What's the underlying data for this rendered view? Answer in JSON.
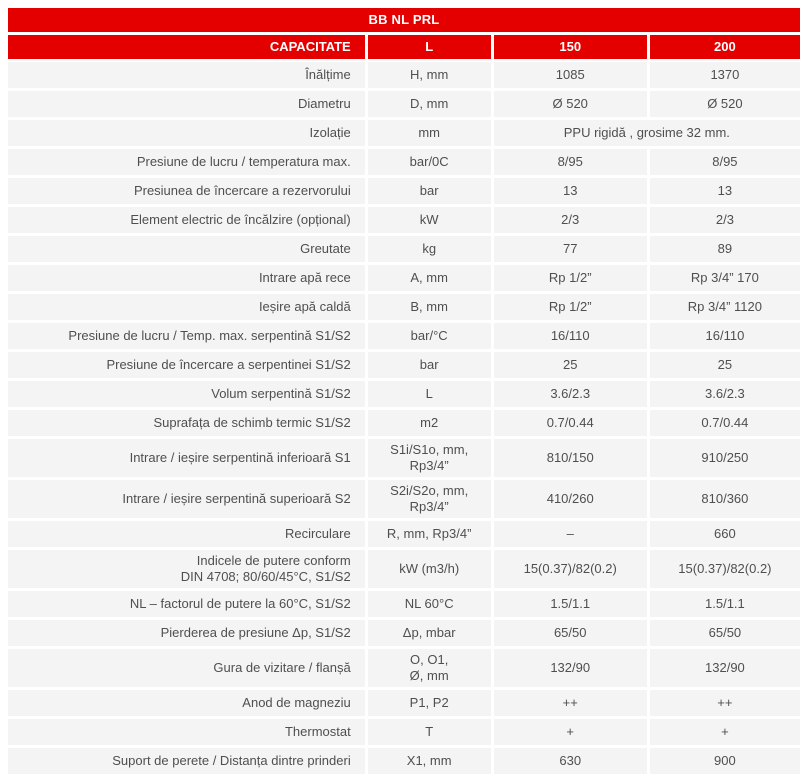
{
  "colors": {
    "accent_red": "#e50000",
    "row_background": "#f4f4f4",
    "text_gray": "#4f4f4f",
    "separator_white": "#ffffff"
  },
  "table": {
    "title": "BB NL PRL",
    "header": {
      "label": "CAPACITATE",
      "unit": "L",
      "col1": "150",
      "col2": "200"
    },
    "rows": [
      {
        "label": "Înălțime",
        "unit": "H, mm",
        "v1": "1085",
        "v2": "1370"
      },
      {
        "label": "Diametru",
        "unit": "D, mm",
        "v1": "Ø 520",
        "v2": "Ø 520"
      },
      {
        "label": "Izolație",
        "unit": "mm",
        "span": "PPU rigidă , grosime 32 mm."
      },
      {
        "label": "Presiune de lucru / temperatura max.",
        "unit": "bar/0C",
        "v1": "8/95",
        "v2": "8/95"
      },
      {
        "label": "Presiunea de încercare a rezervorului",
        "unit": "bar",
        "v1": "13",
        "v2": "13"
      },
      {
        "label": "Element electric de încălzire (opțional)",
        "unit": "kW",
        "v1": "2/3",
        "v2": "2/3"
      },
      {
        "label": "Greutate",
        "unit": "kg",
        "v1": "77",
        "v2": "89"
      },
      {
        "label": "Intrare apă rece",
        "unit": "A, mm",
        "v1": "Rp 1/2”",
        "v2": "Rp 3/4” 170"
      },
      {
        "label": "Ieșire apă caldă",
        "unit": "B, mm",
        "v1": "Rp 1/2”",
        "v2": "Rp 3/4” 1120"
      },
      {
        "label": "Presiune de lucru / Temp. max. serpentină S1/S2",
        "unit": "bar/°C",
        "v1": "16/110",
        "v2": "16/110"
      },
      {
        "label": "Presiune de încercare a serpentinei S1/S2",
        "unit": "bar",
        "v1": "25",
        "v2": "25"
      },
      {
        "label": "Volum serpentină S1/S2",
        "unit": "L",
        "v1": "3.6/2.3",
        "v2": "3.6/2.3"
      },
      {
        "label": "Suprafața de schimb termic S1/S2",
        "unit": "m2",
        "v1": "0.7/0.44",
        "v2": "0.7/0.44"
      },
      {
        "label": "Intrare / ieșire serpentină inferioară S1",
        "unit": "S1i/S1o, mm,\nRp3/4”",
        "v1": "810/150",
        "v2": "910/250"
      },
      {
        "label": "Intrare / ieșire serpentină superioară S2",
        "unit": "S2i/S2o, mm,\nRp3/4”",
        "v1": "410/260",
        "v2": "810/360"
      },
      {
        "label": "Recirculare",
        "unit": "R, mm, Rp3/4”",
        "v1": "–",
        "v2": "660"
      },
      {
        "label": "Indicele de putere conform\nDIN 4708; 80/60/45°C, S1/S2",
        "unit": "kW (m3/h)",
        "v1": "15(0.37)/82(0.2)",
        "v2": "15(0.37)/82(0.2)"
      },
      {
        "label": "NL – factorul de putere la 60°C, S1/S2",
        "unit": "NL 60°C",
        "v1": "1.5/1.1",
        "v2": "1.5/1.1"
      },
      {
        "label": "Pierderea de presiune Δp, S1/S2",
        "unit": "Δp, mbar",
        "v1": "65/50",
        "v2": "65/50"
      },
      {
        "label": "Gura de vizitare / flanșă",
        "unit": "O, O1,\nØ, mm",
        "v1": "132/90",
        "v2": "132/90"
      },
      {
        "label": "Anod de magneziu",
        "unit": "P1, P2",
        "v1": "++",
        "v2": "++"
      },
      {
        "label": "Thermostat",
        "unit": "T",
        "v1": "+",
        "v2": "+"
      },
      {
        "label": "Suport de perete / Distanța dintre prinderi",
        "unit": "X1, mm",
        "v1": "630",
        "v2": "900"
      }
    ]
  }
}
